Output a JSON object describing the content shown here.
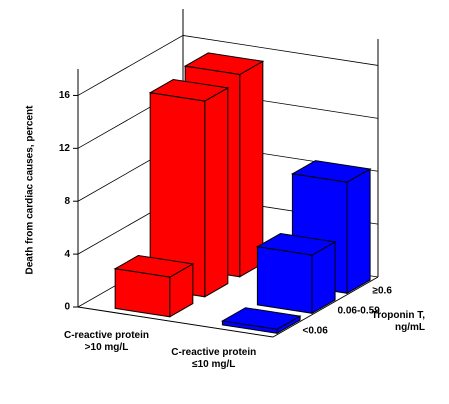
{
  "chart_data": {
    "type": "bar3d",
    "y_label": "Death from cardiac causes, percent",
    "z_label": "Troponin T, ng/mL",
    "categories": [
      "<0.06",
      "0.06-0.59",
      "≥0.6"
    ],
    "series": [
      {
        "name": "C-reactive protein >10 mg/L",
        "color": "#ff0000",
        "values": [
          3.0,
          14.8,
          15.3
        ]
      },
      {
        "name": "C-reactive protein ≤10 mg/L",
        "color": "#0000ff",
        "values": [
          0.3,
          4.4,
          8.4
        ]
      }
    ],
    "ylim": [
      0,
      18
    ],
    "yticks": [
      0,
      4,
      8,
      12,
      16
    ],
    "grid": true
  }
}
